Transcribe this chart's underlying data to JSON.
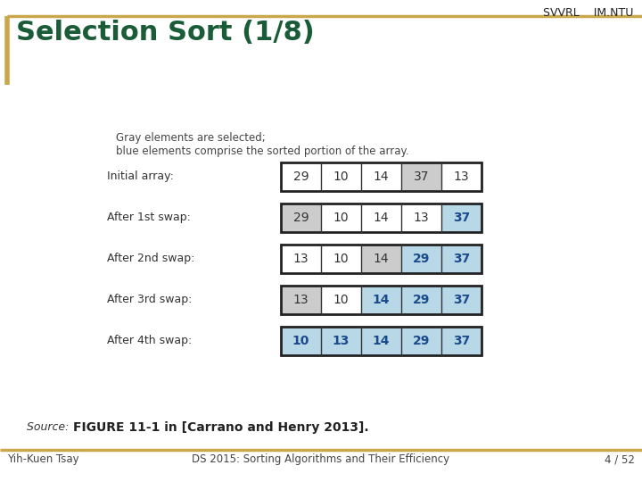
{
  "title": "Selection Sort (1/8)",
  "bg_color": "#ffffff",
  "title_color": "#1a5c38",
  "gold_color": "#c8a84b",
  "header_right": "SVVRL    IM.NTU",
  "footer_left": "Yih-Kuen Tsay",
  "footer_center": "DS 2015: Sorting Algorithms and Their Efficiency",
  "footer_right": "4 / 52",
  "source_label": "Source: ",
  "source_bold": "FIGURE 11-1 in [Carrano and Henry 2013].",
  "legend_line1": "Gray elements are selected;",
  "legend_line2": "blue elements comprise the sorted portion of the array.",
  "rows": [
    {
      "label": "Initial array:",
      "values": [
        "29",
        "10",
        "14",
        "37",
        "13"
      ],
      "colors": [
        "#ffffff",
        "#ffffff",
        "#ffffff",
        "#cccccc",
        "#ffffff"
      ],
      "bold": []
    },
    {
      "label": "After 1st swap:",
      "values": [
        "29",
        "10",
        "14",
        "13",
        "37"
      ],
      "colors": [
        "#cccccc",
        "#ffffff",
        "#ffffff",
        "#ffffff",
        "#b8d8e8"
      ],
      "bold": [
        4
      ]
    },
    {
      "label": "After 2nd swap:",
      "values": [
        "13",
        "10",
        "14",
        "29",
        "37"
      ],
      "colors": [
        "#ffffff",
        "#ffffff",
        "#cccccc",
        "#b8d8e8",
        "#b8d8e8"
      ],
      "bold": [
        3,
        4
      ]
    },
    {
      "label": "After 3rd swap:",
      "values": [
        "13",
        "10",
        "14",
        "29",
        "37"
      ],
      "colors": [
        "#cccccc",
        "#ffffff",
        "#b8d8e8",
        "#b8d8e8",
        "#b8d8e8"
      ],
      "bold": [
        2,
        3,
        4
      ]
    },
    {
      "label": "After 4th swap:",
      "values": [
        "10",
        "13",
        "14",
        "29",
        "37"
      ],
      "colors": [
        "#b8d8e8",
        "#b8d8e8",
        "#b8d8e8",
        "#b8d8e8",
        "#b8d8e8"
      ],
      "bold": [
        0,
        1,
        2,
        3,
        4
      ]
    }
  ]
}
